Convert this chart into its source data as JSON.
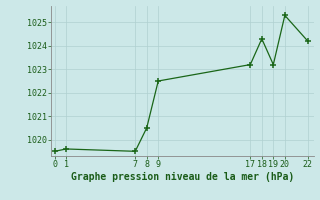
{
  "x_data": [
    0,
    1,
    7,
    8,
    9,
    17,
    18,
    19,
    20,
    22
  ],
  "y_data": [
    1019.5,
    1019.6,
    1019.5,
    1020.5,
    1022.5,
    1023.2,
    1024.3,
    1023.2,
    1025.3,
    1024.2
  ],
  "xlim": [
    -0.3,
    22.5
  ],
  "ylim": [
    1019.3,
    1025.7
  ],
  "yticks": [
    1020,
    1021,
    1022,
    1023,
    1024,
    1025
  ],
  "xticks": [
    0,
    1,
    7,
    8,
    9,
    17,
    18,
    19,
    20,
    22
  ],
  "line_color": "#1a6618",
  "marker_color": "#1a6618",
  "bg_color": "#cce8e8",
  "grid_color": "#b0d0d0",
  "xlabel": "Graphe pression niveau de la mer (hPa)",
  "label_color": "#1a5c18",
  "tick_color": "#1a5c18",
  "tick_fontsize": 6.0,
  "label_fontsize": 7.0
}
